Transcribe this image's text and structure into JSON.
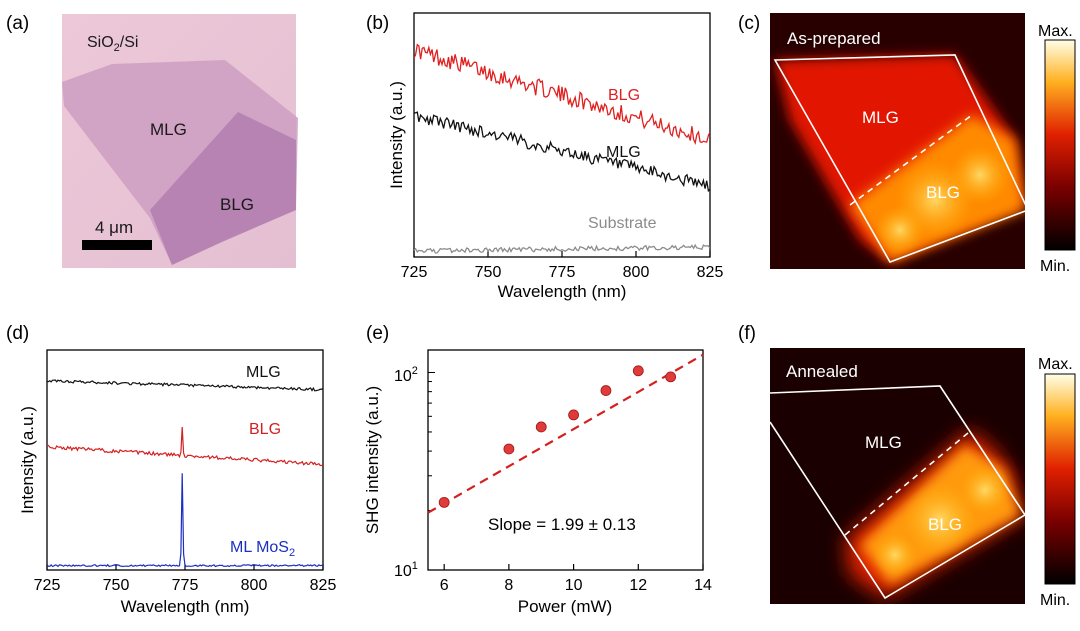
{
  "panels": {
    "a": {
      "label": "(a)",
      "substrate_label": "SiO2/Si",
      "substrate_main": "SiO",
      "substrate_sub": "2",
      "substrate_tail": "/Si",
      "mlg_label": "MLG",
      "blg_label": "BLG",
      "scale_bar_label": "4 μm"
    },
    "b": {
      "label": "(b)",
      "xlabel": "Wavelength (nm)",
      "ylabel": "Intensity (a.u.)",
      "series_labels": {
        "blg": "BLG",
        "mlg": "MLG",
        "substrate": "Substrate"
      }
    },
    "c": {
      "label": "(c)",
      "title": "As-prepared",
      "mlg_label": "MLG",
      "blg_label": "BLG",
      "colorbar_max": "Max.",
      "colorbar_min": "Min."
    },
    "d": {
      "label": "(d)",
      "xlabel": "Wavelength (nm)",
      "ylabel": "Intensity (a.u.)",
      "series_labels": {
        "mlg": "MLG",
        "blg": "BLG",
        "mos2_main": "ML MoS",
        "mos2_sub": "2"
      }
    },
    "e": {
      "label": "(e)",
      "xlabel": "Power (mW)",
      "ylabel": "SHG intensity (a.u.)",
      "annotation": "Slope = 1.99 ± 0.13",
      "ytick_top": "10",
      "ytick_top_exp": "2",
      "ytick_bottom": "10",
      "ytick_bottom_exp": "1"
    },
    "f": {
      "label": "(f)",
      "title": "Annealed",
      "mlg_label": "MLG",
      "blg_label": "BLG",
      "colorbar_max": "Max.",
      "colorbar_min": "Min."
    }
  },
  "chart_data": [
    {
      "panel": "b",
      "type": "line",
      "title": "",
      "xlabel": "Wavelength (nm)",
      "ylabel": "Intensity (a.u.)",
      "xlim": [
        725,
        825
      ],
      "ylim": [
        0,
        1
      ],
      "x_ticks": [
        725,
        750,
        775,
        800,
        825
      ],
      "series": [
        {
          "name": "BLG",
          "color": "#e02020",
          "x": [
            725,
            825
          ],
          "y": [
            0.85,
            0.48
          ],
          "noise": 0.035
        },
        {
          "name": "MLG",
          "color": "#111111",
          "x": [
            725,
            825
          ],
          "y": [
            0.58,
            0.29
          ],
          "noise": 0.025
        },
        {
          "name": "Substrate",
          "color": "#8c8c8c",
          "x": [
            725,
            825
          ],
          "y": [
            0.025,
            0.04
          ],
          "noise": 0.01
        }
      ]
    },
    {
      "panel": "d",
      "type": "line",
      "title": "",
      "xlabel": "Wavelength (nm)",
      "ylabel": "Intensity (a.u.)",
      "xlim": [
        725,
        825
      ],
      "ylim": [
        0,
        1
      ],
      "x_ticks": [
        725,
        750,
        775,
        800,
        825
      ],
      "series": [
        {
          "name": "MLG",
          "color": "#111111",
          "baseline": [
            0.86,
            0.82
          ],
          "noise": 0.006,
          "peak_x": null,
          "peak_height": 0
        },
        {
          "name": "BLG",
          "color": "#d42020",
          "baseline": [
            0.56,
            0.48
          ],
          "noise": 0.008,
          "peak_x": 774,
          "peak_height": 0.13
        },
        {
          "name": "ML MoS2",
          "color": "#1b2fc0",
          "baseline": [
            0.02,
            0.02
          ],
          "noise": 0.004,
          "peak_x": 774,
          "peak_height": 0.42
        }
      ]
    },
    {
      "panel": "e",
      "type": "scatter",
      "title": "",
      "xlabel": "Power (mW)",
      "ylabel": "SHG intensity (a.u.)",
      "x_scale": "linear",
      "y_scale": "log",
      "xlim": [
        5.5,
        14
      ],
      "ylim": [
        10,
        130
      ],
      "x_ticks": [
        6,
        8,
        10,
        12,
        14
      ],
      "points": [
        {
          "x": 6,
          "y": 22
        },
        {
          "x": 8,
          "y": 41
        },
        {
          "x": 9,
          "y": 53
        },
        {
          "x": 10,
          "y": 61
        },
        {
          "x": 11,
          "y": 81
        },
        {
          "x": 12,
          "y": 102
        },
        {
          "x": 13,
          "y": 95
        }
      ],
      "fit": {
        "slope": 1.99,
        "slope_error": 0.13,
        "x": [
          5.5,
          14
        ],
        "y": [
          19.5,
          123
        ]
      },
      "point_color": "#e03a3a",
      "fit_color": "#d42020"
    }
  ]
}
